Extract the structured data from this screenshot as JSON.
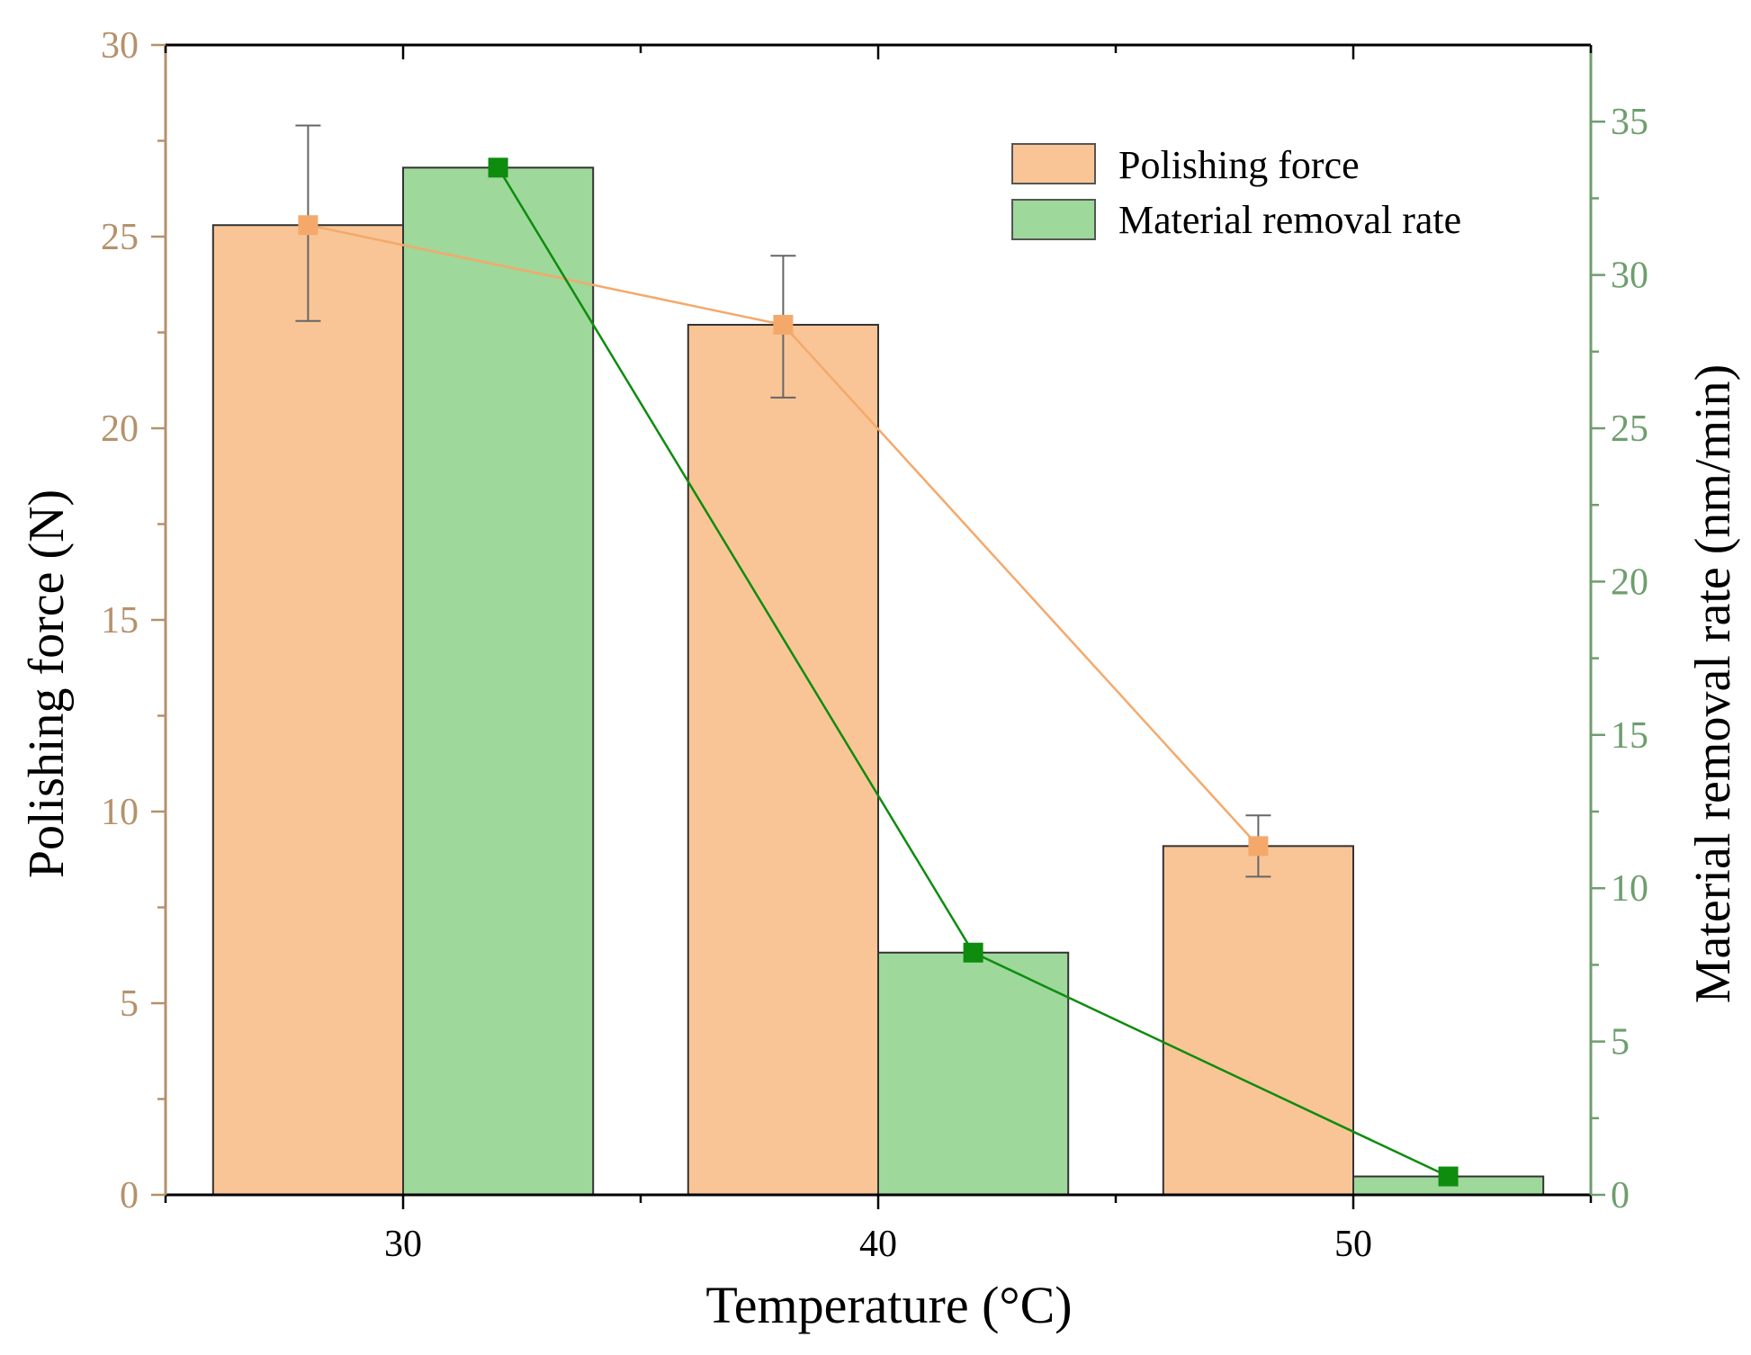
{
  "chart_data": {
    "type": "bar",
    "xlabel": "Temperature (°C)",
    "categories": [
      "30",
      "40",
      "50"
    ],
    "x_range": [
      25,
      55
    ],
    "x_ticks": [
      30,
      40,
      50
    ],
    "left_axis": {
      "label": "Polishing force (N)",
      "range": [
        0,
        30
      ],
      "ticks": [
        0,
        5,
        10,
        15,
        20,
        25,
        30
      ],
      "color": "#b5916b"
    },
    "right_axis": {
      "label": "Material removal rate (nm/min)",
      "range": [
        0,
        37.5
      ],
      "ticks": [
        0,
        5,
        10,
        15,
        20,
        25,
        30,
        35
      ],
      "color": "#6e9e6e"
    },
    "series": [
      {
        "name": "Polishing force",
        "axis": "left",
        "x_centers": [
          28,
          38,
          48
        ],
        "values": [
          25.3,
          22.7,
          9.1
        ],
        "error_low": [
          22.8,
          20.8,
          8.3
        ],
        "error_high": [
          27.9,
          24.5,
          9.9
        ],
        "bar_color": "#f9c596",
        "line_color": "#f4a96b"
      },
      {
        "name": "Material removal rate",
        "axis": "right",
        "x_centers": [
          32,
          42,
          52
        ],
        "values": [
          33.5,
          7.9,
          0.6
        ],
        "bar_color": "#9ed89b",
        "line_color": "#0e8c0e"
      }
    ],
    "bar_width": 4,
    "legend": {
      "position": "top-right",
      "entries": [
        "Polishing force",
        "Material removal rate"
      ]
    }
  }
}
